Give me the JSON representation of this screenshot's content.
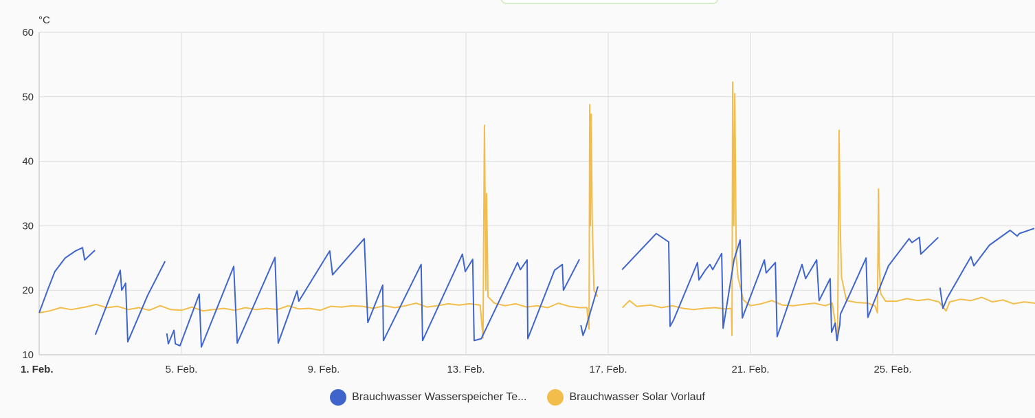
{
  "chart_data": {
    "type": "line",
    "ylabel": "°C",
    "ylim": [
      10,
      60
    ],
    "yticks": [
      "10",
      "20",
      "30",
      "40",
      "50",
      "60"
    ],
    "xlim_day_of_february": [
      1,
      29
    ],
    "xticks": [
      {
        "day": 1,
        "label": "1. Feb.",
        "bold": true
      },
      {
        "day": 5,
        "label": "5. Feb."
      },
      {
        "day": 9,
        "label": "9. Feb."
      },
      {
        "day": 13,
        "label": "13. Feb."
      },
      {
        "day": 17,
        "label": "17. Feb."
      },
      {
        "day": 21,
        "label": "21. Feb."
      },
      {
        "day": 25,
        "label": "25. Feb."
      }
    ],
    "grid": true,
    "legend_position": "bottom",
    "series": [
      {
        "name": "Brauchwasser Wasserspeicher Te...",
        "color": "#3f65cc",
        "segments": [
          [
            [
              1.0,
              16.5
            ],
            [
              1.25,
              20.2
            ],
            [
              1.44,
              22.9
            ],
            [
              1.73,
              25.0
            ],
            [
              2.02,
              26.1
            ],
            [
              2.22,
              26.6
            ],
            [
              2.28,
              24.7
            ],
            [
              2.57,
              26.2
            ]
          ],
          [
            [
              2.58,
              13.1
            ],
            [
              3.28,
              23.1
            ],
            [
              3.32,
              20.0
            ],
            [
              3.43,
              21.1
            ],
            [
              3.49,
              12.0
            ],
            [
              4.05,
              19.2
            ],
            [
              4.54,
              24.5
            ]
          ],
          [
            [
              4.59,
              13.3
            ],
            [
              4.63,
              11.7
            ],
            [
              4.79,
              13.8
            ],
            [
              4.83,
              11.7
            ],
            [
              4.96,
              11.4
            ],
            [
              5.5,
              19.4
            ],
            [
              5.56,
              11.2
            ],
            [
              6.47,
              23.7
            ],
            [
              6.57,
              11.8
            ],
            [
              7.63,
              25.1
            ],
            [
              7.72,
              11.8
            ],
            [
              8.25,
              19.9
            ],
            [
              8.3,
              18.3
            ],
            [
              9.17,
              26.1
            ],
            [
              9.25,
              22.4
            ],
            [
              10.14,
              28.0
            ],
            [
              10.24,
              15.0
            ],
            [
              10.66,
              20.8
            ],
            [
              10.68,
              12.2
            ],
            [
              11.74,
              24.0
            ],
            [
              11.78,
              12.2
            ],
            [
              12.9,
              25.6
            ],
            [
              12.98,
              22.9
            ],
            [
              13.19,
              24.8
            ],
            [
              13.23,
              12.2
            ],
            [
              13.43,
              12.5
            ],
            [
              14.45,
              24.3
            ],
            [
              14.53,
              23.2
            ],
            [
              14.72,
              24.7
            ],
            [
              14.74,
              12.5
            ],
            [
              15.49,
              23.1
            ],
            [
              15.71,
              24.0
            ],
            [
              15.74,
              20.0
            ],
            [
              16.19,
              24.8
            ]
          ],
          [
            [
              16.23,
              14.6
            ],
            [
              16.29,
              13.0
            ],
            [
              16.36,
              14.0
            ],
            [
              16.71,
              20.6
            ]
          ],
          [
            [
              17.39,
              23.2
            ],
            [
              18.35,
              28.8
            ],
            [
              18.7,
              27.5
            ],
            [
              18.74,
              14.4
            ],
            [
              18.84,
              15.4
            ],
            [
              19.51,
              24.3
            ],
            [
              19.55,
              21.6
            ],
            [
              19.74,
              23.2
            ],
            [
              19.86,
              24.0
            ],
            [
              19.94,
              23.2
            ],
            [
              20.19,
              25.7
            ],
            [
              20.23,
              14.1
            ],
            [
              20.54,
              24.8
            ],
            [
              20.71,
              27.8
            ],
            [
              20.77,
              15.7
            ],
            [
              21.39,
              24.7
            ],
            [
              21.44,
              22.7
            ],
            [
              21.7,
              24.3
            ],
            [
              21.75,
              12.8
            ],
            [
              22.45,
              24.0
            ],
            [
              22.55,
              21.8
            ],
            [
              22.86,
              24.7
            ],
            [
              22.93,
              18.4
            ],
            [
              23.24,
              21.8
            ],
            [
              23.28,
              13.5
            ],
            [
              23.38,
              14.9
            ],
            [
              23.43,
              12.2
            ],
            [
              23.51,
              14.6
            ],
            [
              23.53,
              16.3
            ],
            [
              23.8,
              19.5
            ],
            [
              24.25,
              25.0
            ],
            [
              24.3,
              15.8
            ],
            [
              24.88,
              23.8
            ],
            [
              25.46,
              28.0
            ],
            [
              25.54,
              27.4
            ],
            [
              25.75,
              28.2
            ],
            [
              25.79,
              25.6
            ],
            [
              26.28,
              28.2
            ]
          ],
          [
            [
              26.33,
              20.4
            ],
            [
              26.41,
              17.2
            ],
            [
              26.53,
              18.8
            ],
            [
              27.01,
              23.4
            ],
            [
              27.2,
              25.2
            ],
            [
              27.28,
              23.8
            ],
            [
              27.72,
              27.0
            ],
            [
              28.3,
              29.3
            ],
            [
              28.5,
              28.4
            ],
            [
              28.56,
              28.8
            ],
            [
              28.98,
              29.6
            ]
          ]
        ]
      },
      {
        "name": "Brauchwasser Solar Vorlauf",
        "color": "#f2bd4a",
        "segments": [
          [
            [
              1.0,
              16.5
            ],
            [
              1.3,
              16.8
            ],
            [
              1.6,
              17.3
            ],
            [
              1.9,
              17.0
            ],
            [
              2.3,
              17.4
            ],
            [
              2.6,
              17.8
            ],
            [
              2.9,
              17.3
            ],
            [
              3.2,
              17.5
            ],
            [
              3.5,
              17.0
            ],
            [
              3.8,
              17.3
            ],
            [
              4.1,
              16.9
            ],
            [
              4.4,
              17.6
            ],
            [
              4.7,
              17.0
            ],
            [
              5.0,
              16.9
            ],
            [
              5.3,
              17.4
            ],
            [
              5.6,
              16.8
            ],
            [
              5.9,
              17.0
            ],
            [
              6.2,
              17.2
            ],
            [
              6.5,
              16.9
            ],
            [
              6.8,
              17.3
            ],
            [
              7.1,
              17.0
            ],
            [
              7.4,
              17.2
            ],
            [
              7.7,
              17.0
            ],
            [
              8.0,
              17.6
            ],
            [
              8.3,
              17.1
            ],
            [
              8.6,
              17.2
            ],
            [
              8.9,
              16.9
            ],
            [
              9.2,
              17.5
            ],
            [
              9.5,
              17.4
            ],
            [
              9.8,
              17.6
            ],
            [
              10.1,
              17.5
            ],
            [
              10.4,
              17.2
            ],
            [
              10.7,
              17.6
            ],
            [
              11.0,
              17.3
            ],
            [
              11.3,
              17.6
            ],
            [
              11.6,
              18.0
            ],
            [
              11.9,
              17.4
            ],
            [
              12.2,
              17.6
            ],
            [
              12.5,
              17.9
            ],
            [
              12.8,
              17.7
            ],
            [
              13.1,
              17.9
            ],
            [
              13.4,
              17.7
            ],
            [
              13.48,
              12.6
            ],
            [
              13.52,
              45.6
            ],
            [
              13.56,
              20.0
            ],
            [
              13.58,
              35.0
            ],
            [
              13.62,
              19.0
            ],
            [
              13.8,
              18.0
            ],
            [
              14.1,
              17.6
            ],
            [
              14.4,
              17.9
            ],
            [
              14.7,
              17.4
            ],
            [
              15.0,
              17.6
            ],
            [
              15.3,
              17.3
            ],
            [
              15.6,
              18.0
            ],
            [
              15.9,
              17.5
            ],
            [
              16.2,
              17.3
            ],
            [
              16.4,
              17.3
            ],
            [
              16.46,
              14.0
            ],
            [
              16.48,
              48.8
            ],
            [
              16.5,
              30.0
            ],
            [
              16.52,
              47.3
            ],
            [
              16.55,
              31.0
            ],
            [
              16.6,
              20.0
            ],
            [
              16.7,
              19.0
            ]
          ],
          [
            [
              17.4,
              17.3
            ],
            [
              17.6,
              18.4
            ],
            [
              17.8,
              17.5
            ],
            [
              18.2,
              17.7
            ],
            [
              18.5,
              17.3
            ],
            [
              18.8,
              17.6
            ],
            [
              19.1,
              17.2
            ],
            [
              19.4,
              17.0
            ],
            [
              19.7,
              17.2
            ],
            [
              20.0,
              17.3
            ],
            [
              20.3,
              17.1
            ],
            [
              20.46,
              17.2
            ],
            [
              20.48,
              13.0
            ],
            [
              20.5,
              52.3
            ],
            [
              20.53,
              30.0
            ],
            [
              20.56,
              50.5
            ],
            [
              20.6,
              25.0
            ],
            [
              20.65,
              22.0
            ],
            [
              20.8,
              18.5
            ],
            [
              21.0,
              17.6
            ],
            [
              21.3,
              17.9
            ],
            [
              21.6,
              18.4
            ],
            [
              21.9,
              17.7
            ],
            [
              22.2,
              17.6
            ],
            [
              22.5,
              17.8
            ],
            [
              22.8,
              18.0
            ],
            [
              23.1,
              17.6
            ],
            [
              23.3,
              18.0
            ],
            [
              23.45,
              12.5
            ],
            [
              23.49,
              44.8
            ],
            [
              23.52,
              31.0
            ],
            [
              23.56,
              22.0
            ],
            [
              23.7,
              18.4
            ],
            [
              24.0,
              18.1
            ],
            [
              24.3,
              18.0
            ],
            [
              24.5,
              17.6
            ],
            [
              24.57,
              16.5
            ],
            [
              24.6,
              35.7
            ],
            [
              24.62,
              24.0
            ],
            [
              24.66,
              19.5
            ],
            [
              24.8,
              18.3
            ],
            [
              25.1,
              18.3
            ],
            [
              25.4,
              18.7
            ],
            [
              25.7,
              18.4
            ],
            [
              26.0,
              18.6
            ],
            [
              26.3,
              18.2
            ],
            [
              26.5,
              16.8
            ],
            [
              26.6,
              18.2
            ],
            [
              26.9,
              18.6
            ],
            [
              27.2,
              18.4
            ],
            [
              27.5,
              18.9
            ],
            [
              27.8,
              18.2
            ],
            [
              28.1,
              18.5
            ],
            [
              28.4,
              17.9
            ],
            [
              28.7,
              18.2
            ],
            [
              29.0,
              18.0
            ]
          ]
        ]
      }
    ]
  }
}
